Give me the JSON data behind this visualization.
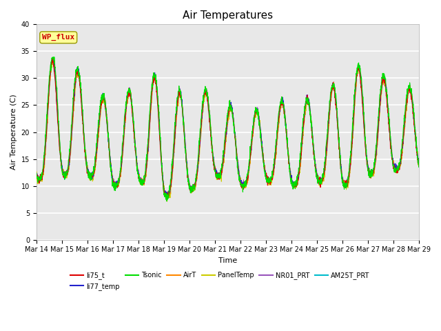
{
  "title": "Air Temperatures",
  "xlabel": "Time",
  "ylabel": "Air Temperature (C)",
  "ylim": [
    0,
    40
  ],
  "yticks": [
    0,
    5,
    10,
    15,
    20,
    25,
    30,
    35,
    40
  ],
  "x_labels": [
    "Mar 14",
    "Mar 15",
    "Mar 16",
    "Mar 17",
    "Mar 18",
    "Mar 19",
    "Mar 20",
    "Mar 21",
    "Mar 22",
    "Mar 23",
    "Mar 24",
    "Mar 25",
    "Mar 26",
    "Mar 27",
    "Mar 28",
    "Mar 29"
  ],
  "line_colors": {
    "li75_t": "#dd0000",
    "li77_temp": "#2222cc",
    "Tsonic": "#00dd00",
    "AirT": "#ff8800",
    "PanelTemp": "#cccc00",
    "NR01_PRT": "#9955bb",
    "AM25T_PRT": "#00bbcc"
  },
  "annotation_text": "WP_flux",
  "annotation_color": "#cc0000",
  "annotation_bg": "#ffff99",
  "annotation_border": "#999900",
  "plot_bg": "#e8e8e8",
  "title_fontsize": 11,
  "axis_fontsize": 8,
  "legend_fontsize": 8
}
